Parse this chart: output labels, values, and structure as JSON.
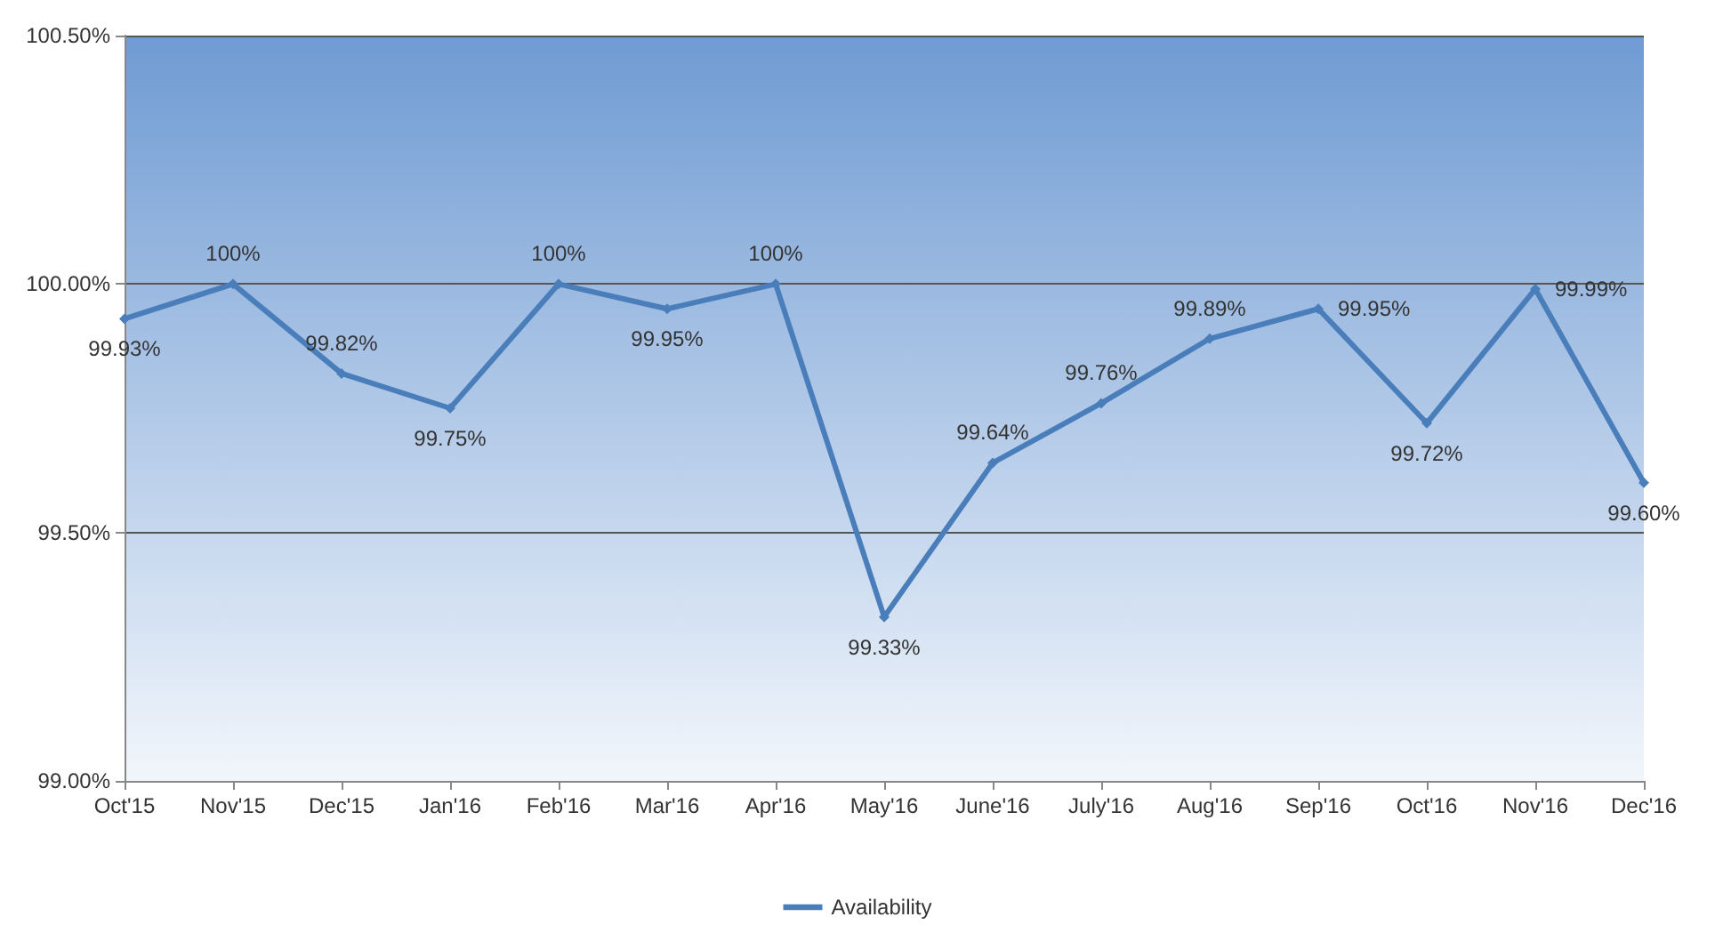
{
  "chart_data": {
    "type": "line",
    "categories": [
      "Oct'15",
      "Nov'15",
      "Dec'15",
      "Jan'16",
      "Feb'16",
      "Mar'16",
      "Apr'16",
      "May'16",
      "June'16",
      "July'16",
      "Aug'16",
      "Sep'16",
      "Oct'16",
      "Nov'16",
      "Dec'16"
    ],
    "series": [
      {
        "name": "Availability",
        "color": "#4a7ebb",
        "values": [
          99.93,
          100,
          99.82,
          99.75,
          100,
          99.95,
          100,
          99.33,
          99.64,
          99.76,
          99.89,
          99.95,
          99.72,
          99.99,
          99.6
        ],
        "value_labels": [
          "99.93%",
          "100%",
          "99.82%",
          "99.75%",
          "100%",
          "99.95%",
          "100%",
          "99.33%",
          "99.64%",
          "99.76%",
          "99.89%",
          "99.95%",
          "99.72%",
          "99.99%",
          "99.60%"
        ]
      }
    ],
    "ylim": [
      99.0,
      100.5
    ],
    "yticks": [
      {
        "value": 99.0,
        "label": "99.00%"
      },
      {
        "value": 99.5,
        "label": "99.50%"
      },
      {
        "value": 100.0,
        "label": "100.00%"
      },
      {
        "value": 100.5,
        "label": "100.50%"
      }
    ],
    "grid": "y",
    "legend": "bottom",
    "marker": "diamond",
    "line_style": "solid"
  }
}
